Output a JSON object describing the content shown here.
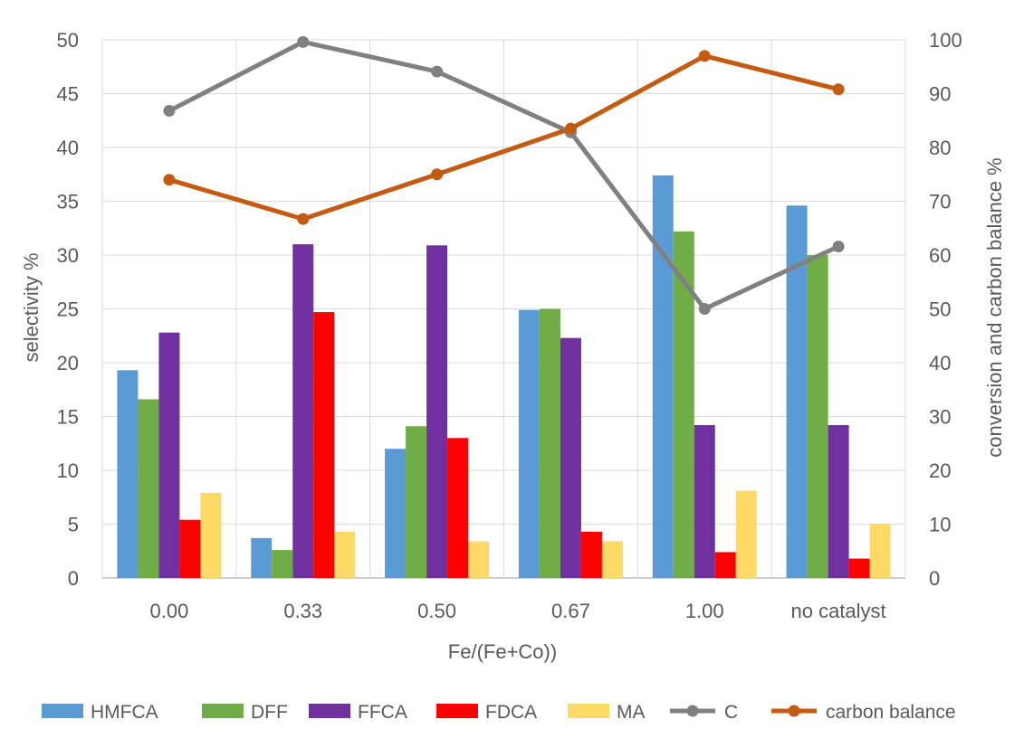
{
  "chart_data": {
    "type": "bar",
    "title": "",
    "categories": [
      "0.00",
      "0.33",
      "0.50",
      "0.67",
      "1.00",
      "no catalyst"
    ],
    "xlabel": "Fe/(Fe+Co))",
    "ylabel": "selectivity %",
    "ylabel_right": "conversion and carbon balance %",
    "ylim": [
      0,
      50
    ],
    "yticks": [
      0,
      5,
      10,
      15,
      20,
      25,
      30,
      35,
      40,
      45,
      50
    ],
    "ylim_right": [
      0,
      100
    ],
    "yticks_right": [
      0,
      10,
      20,
      30,
      40,
      50,
      60,
      70,
      80,
      90,
      100
    ],
    "grid": true,
    "legend_position": "bottom",
    "series": [
      {
        "name": "HMFCA",
        "kind": "bar",
        "axis": "left",
        "color": "#5B9BD5",
        "values": [
          19.3,
          3.7,
          12.0,
          24.9,
          37.4,
          34.6
        ]
      },
      {
        "name": "DFF",
        "kind": "bar",
        "axis": "left",
        "color": "#70AD47",
        "values": [
          16.6,
          2.6,
          14.1,
          25.0,
          32.2,
          30.0
        ]
      },
      {
        "name": "FFCA",
        "kind": "bar",
        "axis": "left",
        "color": "#7030A0",
        "values": [
          22.8,
          31.0,
          30.9,
          22.3,
          14.2,
          14.2
        ]
      },
      {
        "name": "FDCA",
        "kind": "bar",
        "axis": "left",
        "color": "#FF0000",
        "values": [
          5.4,
          24.7,
          13.0,
          4.3,
          2.4,
          1.8
        ]
      },
      {
        "name": "MA",
        "kind": "bar",
        "axis": "left",
        "color": "#FFD966",
        "values": [
          7.9,
          4.3,
          3.4,
          3.4,
          8.1,
          5.0
        ]
      },
      {
        "name": "C",
        "kind": "line",
        "axis": "right",
        "color": "#808080",
        "values": [
          86.8,
          99.6,
          94.1,
          82.8,
          50.0,
          61.6
        ]
      },
      {
        "name": "carbon balance",
        "kind": "line",
        "axis": "right",
        "color": "#C55A11",
        "values": [
          74.0,
          66.7,
          75.0,
          83.5,
          97.0,
          90.8
        ]
      }
    ]
  }
}
